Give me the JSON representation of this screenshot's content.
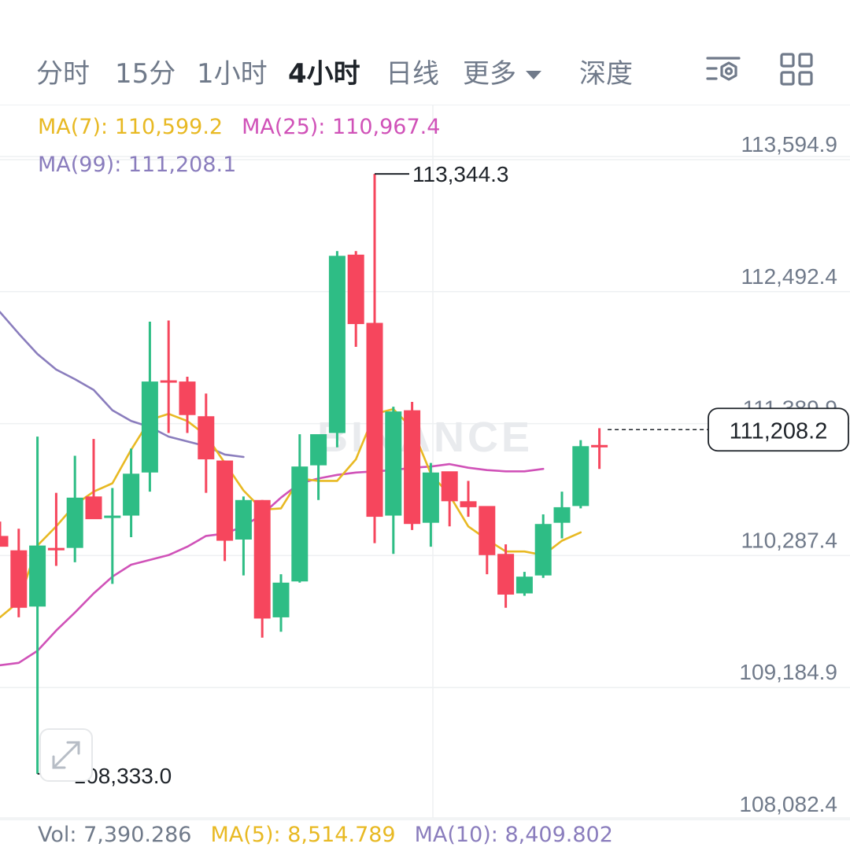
{
  "tabs": [
    {
      "label": "分时",
      "active": false
    },
    {
      "label": "15分",
      "active": false
    },
    {
      "label": "1小时",
      "active": false
    },
    {
      "label": "4小时",
      "active": true
    },
    {
      "label": "日线",
      "active": false
    },
    {
      "label": "更多",
      "active": false
    },
    {
      "label": "深度",
      "active": false
    }
  ],
  "toolbar_icons": [
    "indicator-settings-icon",
    "layout-grid-icon"
  ],
  "colors": {
    "up": "#2ebd85",
    "down": "#f6465d",
    "ma7": "#e8b923",
    "ma25": "#d052b8",
    "ma99": "#8a7dbd",
    "axis_text": "#707a8a",
    "grid": "#eef0f2"
  },
  "indicators": {
    "ma7": "MA(7): 110,599.2",
    "ma25": "MA(25): 110,967.4",
    "ma99": "MA(99): 111,208.1"
  },
  "volume": {
    "vol": "Vol: 7,390.286",
    "ma5": "MA(5): 8,514.789",
    "ma10": "MA(10): 8,409.802"
  },
  "price_axis": [
    "113,594.9",
    "112,492.4",
    "111,389.9",
    "110,287.4",
    "109,184.9",
    "108,082.4"
  ],
  "current_price": "111,208.2",
  "high_label": "113,344.3",
  "low_label": "108,333.0",
  "watermark": "BINANCE",
  "chart_data": {
    "type": "candlestick",
    "ylim": [
      108082.4,
      113594.9
    ],
    "y_ticks": [
      113594.9,
      112492.4,
      111389.9,
      110287.4,
      109184.9,
      108082.4
    ],
    "candles": [
      {
        "o": 110320,
        "h": 110440,
        "l": 110240,
        "c": 110230
      },
      {
        "o": 110200,
        "h": 110380,
        "l": 109640,
        "c": 109720
      },
      {
        "o": 109730,
        "h": 111150,
        "l": 108333.0,
        "c": 110240
      },
      {
        "o": 110220,
        "h": 110680,
        "l": 110070,
        "c": 110200
      },
      {
        "o": 110220,
        "h": 110990,
        "l": 110100,
        "c": 110640
      },
      {
        "o": 110650,
        "h": 111130,
        "l": 110480,
        "c": 110460
      },
      {
        "o": 110470,
        "h": 110720,
        "l": 109920,
        "c": 110490
      },
      {
        "o": 110490,
        "h": 111050,
        "l": 110310,
        "c": 110840
      },
      {
        "o": 110850,
        "h": 112110,
        "l": 110690,
        "c": 111610
      },
      {
        "o": 111620,
        "h": 112120,
        "l": 111180,
        "c": 111610
      },
      {
        "o": 111610,
        "h": 111650,
        "l": 111180,
        "c": 111330
      },
      {
        "o": 111320,
        "h": 111510,
        "l": 110680,
        "c": 110960
      },
      {
        "o": 110950,
        "h": 110950,
        "l": 110110,
        "c": 110280
      },
      {
        "o": 110290,
        "h": 110650,
        "l": 109990,
        "c": 110620
      },
      {
        "o": 110620,
        "h": 110620,
        "l": 109470,
        "c": 109630
      },
      {
        "o": 109640,
        "h": 110000,
        "l": 109520,
        "c": 109930
      },
      {
        "o": 109940,
        "h": 111170,
        "l": 109930,
        "c": 110900
      },
      {
        "o": 110910,
        "h": 111120,
        "l": 110620,
        "c": 111170
      },
      {
        "o": 111180,
        "h": 112700,
        "l": 111060,
        "c": 112660
      },
      {
        "o": 112670,
        "h": 112700,
        "l": 111900,
        "c": 112090
      },
      {
        "o": 112100,
        "h": 113344.3,
        "l": 110260,
        "c": 110480
      },
      {
        "o": 110490,
        "h": 111400,
        "l": 110170,
        "c": 111360
      },
      {
        "o": 111370,
        "h": 111440,
        "l": 110370,
        "c": 110420
      },
      {
        "o": 110430,
        "h": 110930,
        "l": 110230,
        "c": 110850
      },
      {
        "o": 110860,
        "h": 110850,
        "l": 110400,
        "c": 110610
      },
      {
        "o": 110610,
        "h": 110780,
        "l": 110480,
        "c": 110560
      },
      {
        "o": 110570,
        "h": 110560,
        "l": 110000,
        "c": 110160
      },
      {
        "o": 110170,
        "h": 110250,
        "l": 109720,
        "c": 109830
      },
      {
        "o": 109840,
        "h": 110020,
        "l": 109820,
        "c": 109980
      },
      {
        "o": 109990,
        "h": 110500,
        "l": 109970,
        "c": 110420
      },
      {
        "o": 110430,
        "h": 110690,
        "l": 110300,
        "c": 110560
      },
      {
        "o": 110570,
        "h": 111120,
        "l": 110550,
        "c": 111070
      },
      {
        "o": 111080,
        "h": 111220,
        "l": 110880,
        "c": 111060
      }
    ],
    "ma7": [
      109640,
      109770,
      110240,
      110400,
      110580,
      110690,
      110760,
      111040,
      111290,
      111340,
      111280,
      111160,
      110930,
      110700,
      110540,
      110550,
      110800,
      110780,
      110780,
      110960,
      111340,
      111380,
      111220,
      110840,
      110660,
      110400,
      110290,
      110190,
      110190,
      110160,
      110280,
      110350
    ],
    "ma25": [
      109240,
      109260,
      109360,
      109530,
      109680,
      109840,
      109980,
      110080,
      110120,
      110160,
      110230,
      110320,
      110340,
      110400,
      110500,
      110640,
      110760,
      110800,
      110830,
      110850,
      110860,
      110870,
      110890,
      110900,
      110920,
      110890,
      110870,
      110860,
      110860,
      110880
    ],
    "ma99": [
      112190,
      112010,
      111840,
      111710,
      111630,
      111540,
      111370,
      111280,
      111230,
      111150,
      111110,
      111070,
      111000,
      110980
    ]
  }
}
